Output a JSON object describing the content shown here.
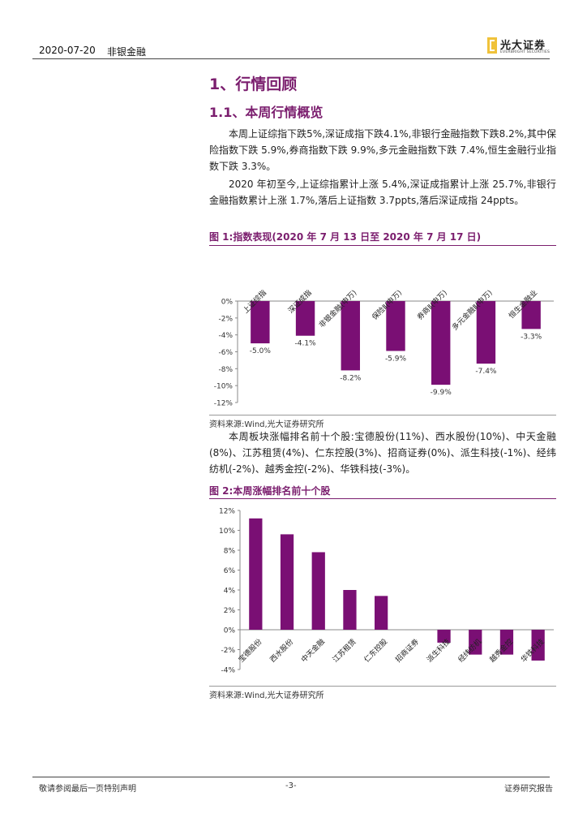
{
  "header": {
    "date": "2020-07-20",
    "sector": "非银金融"
  },
  "logo": {
    "cn": "光大证券",
    "en": "EVERBRIGHT SECURITIES"
  },
  "section": {
    "h1": "1、行情回顾",
    "h2": "1.1、本周行情概览"
  },
  "paragraphs": {
    "p1": "本周上证综指下跌5%,深证成指下跌4.1%,非银行金融指数下跌8.2%,其中保险指数下跌 5.9%,券商指数下跌 9.9%,多元金融指数下跌 7.4%,恒生金融行业指数下跌 3.3%。",
    "p2": "2020 年初至今,上证综指累计上涨 5.4%,深证成指累计上涨 25.7%,非银行金融指数累计上涨 1.7%,落后上证指数 3.7ppts,落后深证成指 24ppts。",
    "p3": "本周板块涨幅排名前十个股:宝德股份(11%)、西水股份(10%)、中天金融(8%)、江苏租赁(4%)、仁东控股(3%)、招商证券(0%)、派生科技(-1%)、经纬纺机(-2%)、越秀金控(-2%)、华铁科技(-3%)。"
  },
  "figures": {
    "fig1": {
      "title": "图 1:指数表现(2020 年 7 月 13 日至 2020 年 7 月 17 日)",
      "source": "资料来源:Wind,光大证券研究所"
    },
    "fig2": {
      "title": "图 2:本周涨幅排名前十个股",
      "source": "资料来源:Wind,光大证券研究所"
    }
  },
  "chart_data": [
    {
      "type": "bar",
      "title": "指数表现(2020 年 7 月 13 日至 2020 年 7 月 17 日)",
      "categories": [
        "上证综指",
        "深证成指",
        "非银金融(申万)",
        "保险Ⅱ(申万)",
        "券商Ⅱ(申万)",
        "多元金融Ⅱ(申万)",
        "恒生金融业"
      ],
      "values": [
        -5.0,
        -4.1,
        -8.2,
        -5.9,
        -9.9,
        -7.4,
        -3.3
      ],
      "value_labels": [
        "-5.0%",
        "-4.1%",
        "-8.2%",
        "-5.9%",
        "-9.9%",
        "-7.4%",
        "-3.3%"
      ],
      "ylim": [
        -12,
        0
      ],
      "yticks": [
        0,
        -2,
        -4,
        -6,
        -8,
        -10,
        -12
      ],
      "ytick_labels": [
        "0%",
        "-2%",
        "-4%",
        "-6%",
        "-8%",
        "-10%",
        "-12%"
      ],
      "xlabel": "",
      "ylabel": "",
      "color": "#7a0f74"
    },
    {
      "type": "bar",
      "title": "本周涨幅排名前十个股",
      "categories": [
        "宝德股份",
        "西水股份",
        "中天金融",
        "江苏租赁",
        "仁东控股",
        "招商证券",
        "派生科技",
        "经纬纺机",
        "越秀金控",
        "华铁科技"
      ],
      "values": [
        11.2,
        9.6,
        7.8,
        4.0,
        3.4,
        0.0,
        -1.3,
        -2.5,
        -2.5,
        -3.1
      ],
      "ylim": [
        -4,
        12
      ],
      "yticks": [
        12,
        10,
        8,
        6,
        4,
        2,
        0,
        -2,
        -4
      ],
      "ytick_labels": [
        "12%",
        "10%",
        "8%",
        "6%",
        "4%",
        "2%",
        "0%",
        "-2%",
        "-4%"
      ],
      "xlabel": "",
      "ylabel": "",
      "color": "#7a0f74"
    }
  ],
  "footer": {
    "left": "敬请参阅最后一页特别声明",
    "page": "-3-",
    "right": "证券研究报告"
  }
}
